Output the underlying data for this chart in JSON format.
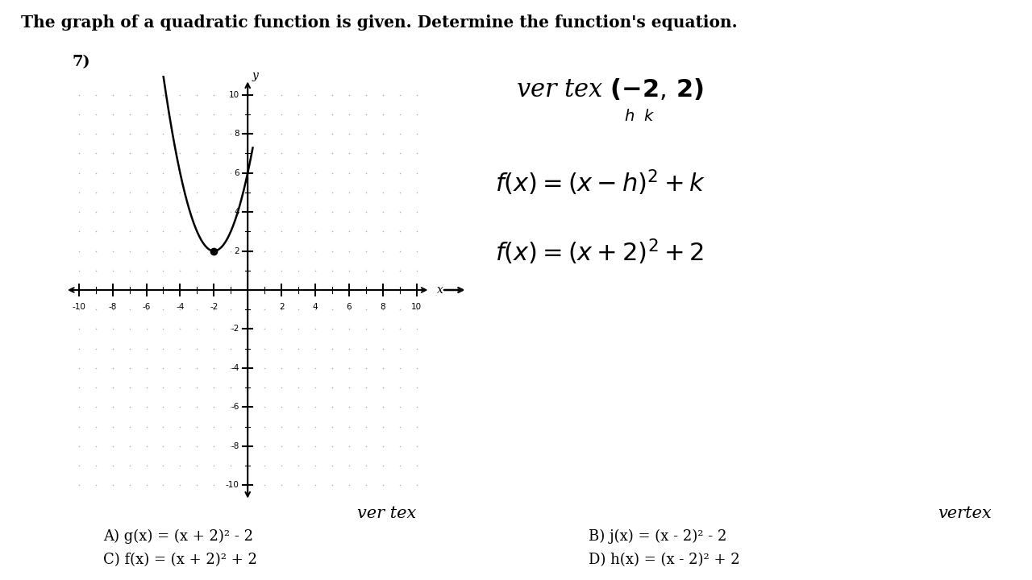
{
  "title": "The graph of a quadratic function is given. Determine the function's equation.",
  "problem_number": "7)",
  "vertex_x": -2,
  "vertex_y": 2,
  "xlim": [
    -11,
    11
  ],
  "ylim": [
    -11,
    11
  ],
  "x_ticks": [
    -10,
    -8,
    -6,
    -4,
    -2,
    2,
    4,
    6,
    8,
    10
  ],
  "y_ticks": [
    -10,
    -8,
    -6,
    -4,
    -2,
    2,
    4,
    6,
    8,
    10
  ],
  "grid_dot_color": "#aaaaaa",
  "bg_color": "#ffffff",
  "text_color": "#000000",
  "answer_A": "A) g(x) = (x + 2)² - 2",
  "answer_B": "B) j(x) = (x - 2)² - 2",
  "answer_C": "C) f(x) = (x + 2)² + 2",
  "answer_D": "D) h(x) = (x - 2)² + 2"
}
